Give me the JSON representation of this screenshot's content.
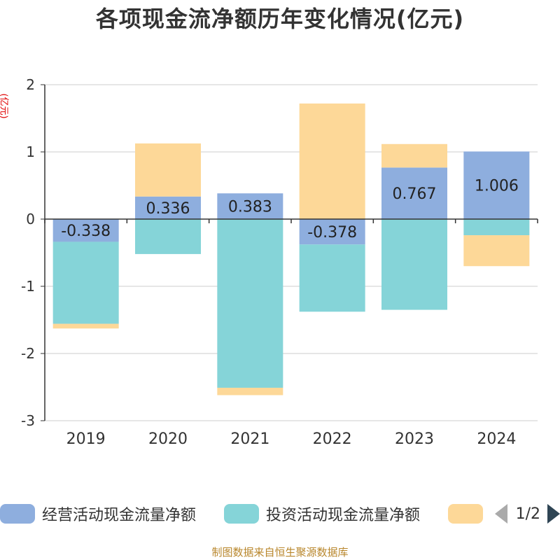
{
  "title": "各项现金流净额历年变化情况(亿元)",
  "y_unit": "(亿元)",
  "footer": "制图数据来自恒生聚源数据库",
  "pager": "1/2",
  "chart_data": {
    "type": "bar",
    "stacked": true,
    "categories": [
      "2019",
      "2020",
      "2021",
      "2022",
      "2023",
      "2024"
    ],
    "ylim": [
      -3,
      2
    ],
    "yticks": [
      2,
      1,
      0,
      -1,
      -2,
      -3
    ],
    "grid": true,
    "legend_position": "bottom",
    "series": [
      {
        "name": "经营活动现金流量净额",
        "color": "#8eaede",
        "values": [
          -0.338,
          0.336,
          0.383,
          -0.378,
          0.767,
          1.006
        ],
        "labels": [
          "-0.338",
          "0.336",
          "0.383",
          "-0.378",
          "0.767",
          "1.006"
        ]
      },
      {
        "name": "投资活动现金流量净额",
        "color": "#85d4d8",
        "values": [
          -1.22,
          -0.52,
          -2.51,
          -1.0,
          -1.35,
          -0.24
        ]
      },
      {
        "name": "",
        "color": "#fdd898",
        "values": [
          -0.07,
          0.79,
          -0.11,
          1.72,
          0.35,
          -0.46
        ]
      }
    ]
  }
}
